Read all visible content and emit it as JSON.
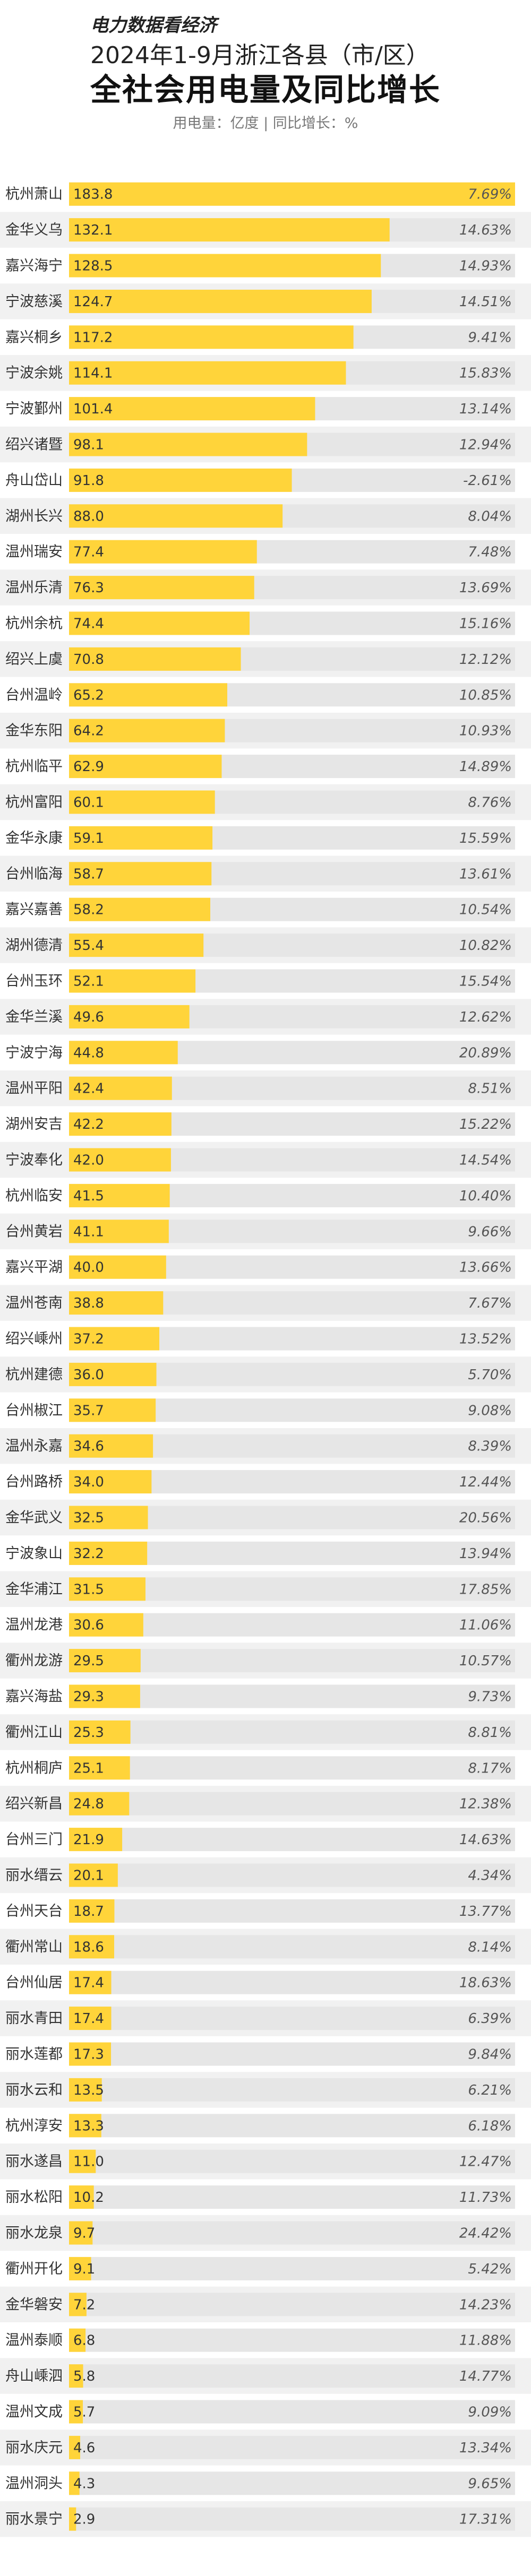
{
  "header": {
    "brand": "电力数据看经济",
    "subtitle": "2024年1-9月浙江各县（市/区）",
    "title": "全社会用电量及同比增长",
    "note": "用电量：亿度 | 同比增长：%"
  },
  "colors": {
    "bar": "#ffd43a",
    "track": "#e6e6e6",
    "row_alt": "#f1f1f1"
  },
  "chart_data": {
    "type": "bar",
    "orientation": "horizontal",
    "categories": [
      "杭州萧山",
      "金华义乌",
      "嘉兴海宁",
      "宁波慈溪",
      "嘉兴桐乡",
      "宁波余姚",
      "宁波鄞州",
      "绍兴诸暨",
      "舟山岱山",
      "湖州长兴",
      "温州瑞安",
      "温州乐清",
      "杭州余杭",
      "绍兴上虞",
      "台州温岭",
      "金华东阳",
      "杭州临平",
      "杭州富阳",
      "金华永康",
      "台州临海",
      "嘉兴嘉善",
      "湖州德清",
      "台州玉环",
      "金华兰溪",
      "宁波宁海",
      "温州平阳",
      "湖州安吉",
      "宁波奉化",
      "杭州临安",
      "台州黄岩",
      "嘉兴平湖",
      "温州苍南",
      "绍兴嵊州",
      "杭州建德",
      "台州椒江",
      "温州永嘉",
      "台州路桥",
      "金华武义",
      "宁波象山",
      "金华浦江",
      "温州龙港",
      "衢州龙游",
      "嘉兴海盐",
      "衢州江山",
      "杭州桐庐",
      "绍兴新昌",
      "台州三门",
      "丽水缙云",
      "台州天台",
      "衢州常山",
      "台州仙居",
      "丽水青田",
      "丽水莲都",
      "丽水云和",
      "杭州淳安",
      "丽水遂昌",
      "丽水松阳",
      "丽水龙泉",
      "衢州开化",
      "金华磐安",
      "温州泰顺",
      "舟山嵊泗",
      "温州文成",
      "丽水庆元",
      "温州洞头",
      "丽水景宁"
    ],
    "series": [
      {
        "values": [
          183.8,
          132.1,
          128.5,
          124.7,
          117.2,
          114.1,
          101.4,
          98.1,
          91.8,
          88.0,
          77.4,
          76.3,
          74.4,
          70.8,
          65.2,
          64.2,
          62.9,
          60.1,
          59.1,
          58.7,
          58.2,
          55.4,
          52.1,
          49.6,
          44.8,
          42.4,
          42.2,
          42.0,
          41.5,
          41.1,
          40.0,
          38.8,
          37.2,
          36.0,
          35.7,
          34.6,
          34.0,
          32.5,
          32.2,
          31.5,
          30.6,
          29.5,
          29.3,
          25.3,
          25.1,
          24.8,
          21.9,
          20.1,
          18.7,
          18.6,
          17.4,
          17.4,
          17.3,
          13.5,
          13.3,
          11.0,
          10.2,
          9.7,
          9.1,
          7.2,
          6.8,
          5.8,
          5.7,
          4.6,
          4.3,
          2.9
        ]
      },
      {
        "values": [
          7.69,
          14.63,
          14.93,
          14.51,
          9.41,
          15.83,
          13.14,
          12.94,
          -2.61,
          8.04,
          7.48,
          13.69,
          15.16,
          12.12,
          10.85,
          10.93,
          14.89,
          8.76,
          15.59,
          13.61,
          10.54,
          10.82,
          15.54,
          12.62,
          20.89,
          8.51,
          15.22,
          14.54,
          10.4,
          9.66,
          13.66,
          7.67,
          13.52,
          5.7,
          9.08,
          8.39,
          12.44,
          20.56,
          13.94,
          17.85,
          11.06,
          10.57,
          9.73,
          8.81,
          8.17,
          12.38,
          14.63,
          4.34,
          13.77,
          8.14,
          18.63,
          6.39,
          9.84,
          6.21,
          6.18,
          12.47,
          11.73,
          24.42,
          5.42,
          14.23,
          11.88,
          14.77,
          9.09,
          13.34,
          9.65,
          17.31
        ]
      }
    ],
    "value_labels": [
      "183.8",
      "132.1",
      "128.5",
      "124.7",
      "117.2",
      "114.1",
      "101.4",
      "98.1",
      "91.8",
      "88.0",
      "77.4",
      "76.3",
      "74.4",
      "70.8",
      "65.2",
      "64.2",
      "62.9",
      "60.1",
      "59.1",
      "58.7",
      "58.2",
      "55.4",
      "52.1",
      "49.6",
      "44.8",
      "42.4",
      "42.2",
      "42.0",
      "41.5",
      "41.1",
      "40.0",
      "38.8",
      "37.2",
      "36.0",
      "35.7",
      "34.6",
      "34.0",
      "32.5",
      "32.2",
      "31.5",
      "30.6",
      "29.5",
      "29.3",
      "25.3",
      "25.1",
      "24.8",
      "21.9",
      "20.1",
      "18.7",
      "18.6",
      "17.4",
      "17.4",
      "17.3",
      "13.5",
      "13.3",
      "11.0",
      "10.2",
      "9.7",
      "9.1",
      "7.2",
      "6.8",
      "5.8",
      "5.7",
      "4.6",
      "4.3",
      "2.9"
    ],
    "growth_labels": [
      "7.69%",
      "14.63%",
      "14.93%",
      "14.51%",
      "9.41%",
      "15.83%",
      "13.14%",
      "12.94%",
      "-2.61%",
      "8.04%",
      "7.48%",
      "13.69%",
      "15.16%",
      "12.12%",
      "10.85%",
      "10.93%",
      "14.89%",
      "8.76%",
      "15.59%",
      "13.61%",
      "10.54%",
      "10.82%",
      "15.54%",
      "12.62%",
      "20.89%",
      "8.51%",
      "15.22%",
      "14.54%",
      "10.40%",
      "9.66%",
      "13.66%",
      "7.67%",
      "13.52%",
      "5.70%",
      "9.08%",
      "8.39%",
      "12.44%",
      "20.56%",
      "13.94%",
      "17.85%",
      "11.06%",
      "10.57%",
      "9.73%",
      "8.81%",
      "8.17%",
      "12.38%",
      "14.63%",
      "4.34%",
      "13.77%",
      "8.14%",
      "18.63%",
      "6.39%",
      "9.84%",
      "6.21%",
      "6.18%",
      "12.47%",
      "11.73%",
      "24.42%",
      "5.42%",
      "14.23%",
      "11.88%",
      "14.77%",
      "9.09%",
      "13.34%",
      "9.65%",
      "17.31%"
    ],
    "xlim": [
      0,
      183.8
    ]
  }
}
